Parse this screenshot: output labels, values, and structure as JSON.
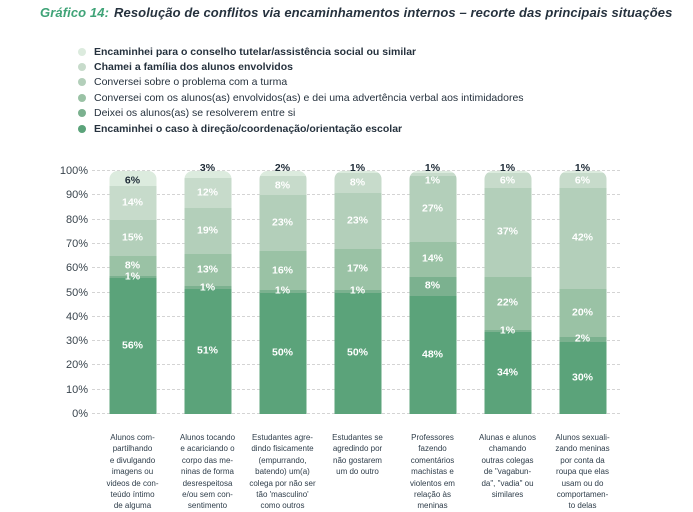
{
  "header": {
    "prefix": "Gráfico 14:",
    "title": "Resolução de conflitos via encaminhamentos internos – recorte das principais situações"
  },
  "legend": {
    "items": [
      {
        "label": "Encaminhei para o conselho tutelar/assistência social ou similar",
        "color": "#dcebde",
        "bold": true
      },
      {
        "label": "Chamei a família dos alunos envolvidos",
        "color": "#c7dbcb",
        "bold": true
      },
      {
        "label": "Conversei sobre o problema com a turma",
        "color": "#b3cfba",
        "bold": false
      },
      {
        "label": "Conversei com os alunos(as) envolvidos(as) e dei uma advertência verbal aos intimidadores",
        "color": "#9ac2a5",
        "bold": false
      },
      {
        "label": "Deixei os alunos(as) se resolverem entre si",
        "color": "#7bb18f",
        "bold": false
      },
      {
        "label": "Encaminhei o caso à direção/coordenação/orientação escolar",
        "color": "#5ba37a",
        "bold": true
      }
    ]
  },
  "y_axis": {
    "tick_labels": [
      "100%",
      "90%",
      "80%",
      "70%",
      "60%",
      "50%",
      "40%",
      "30%",
      "20%",
      "10%",
      "0%"
    ],
    "tick_values": [
      100,
      90,
      80,
      70,
      60,
      50,
      40,
      30,
      20,
      10,
      0
    ]
  },
  "colors": {
    "title_green": "#3fa377",
    "text_dark": "#26323e",
    "grid": "#d4d4d4",
    "bar_label_light": "#ffffff",
    "bar_label_dark": "#1f2c38"
  },
  "chart_data": {
    "type": "bar",
    "stacked": true,
    "title": "Gráfico 14: Resolução de conflitos via encaminhamentos internos – recorte das principais situações",
    "xlabel": "",
    "ylabel": "",
    "ylim": [
      0,
      100
    ],
    "value_suffix": "%",
    "grid": "horizontal-dashed",
    "legend_position": "top-left",
    "categories": [
      "Alunos compartilhando e divulgando imagens ou videos de conteúdo íntimo de alguma",
      "Alunos tocando e acariciando o corpo das meninas de forma desrespeitosa e/ou sem consentimento",
      "Estudantes agredindo fisicamente (empurrando, batendo) um(a) colega por não ser tão 'masculino' como outros",
      "Estudantes se agredindo por não gostarem um do outro",
      "Professores fazendo comentários machistas e violentos em relação às meninas",
      "Alunas e alunos chamando outras colegas de \"vagabunda\", \"vadia\" ou similares",
      "Alunos sexualizando meninas por conta da roupa que elas usam ou do comportamento delas"
    ],
    "category_lines": [
      [
        "Alunos com-",
        "partilhando",
        "e divulgando",
        "imagens ou",
        "videos de con-",
        "teúdo íntimo",
        "de alguma"
      ],
      [
        "Alunos tocando",
        "e acariciando o",
        "corpo das me-",
        "ninas de forma",
        "desrespeitosa",
        "e/ou sem con-",
        "sentimento"
      ],
      [
        "Estudantes agre-",
        "dindo fisicamente",
        "(empurrando,",
        "batendo) um(a)",
        "colega por não ser",
        "tão 'masculino'",
        "como outros"
      ],
      [
        "Estudantes se",
        "agredindo por",
        "não gostarem",
        "um do outro"
      ],
      [
        "Professores",
        "fazendo",
        "comentários",
        "machistas e",
        "violentos em",
        "relação às",
        "meninas"
      ],
      [
        "Alunas e alunos",
        "chamando",
        "outras colegas",
        "de \"vagabun-",
        "da\", \"vadia\" ou",
        "similares"
      ],
      [
        "Alunos sexuali-",
        "zando meninas",
        "por conta da",
        "roupa que elas",
        "usam ou do",
        "comportamen-",
        "to delas"
      ]
    ],
    "series": [
      {
        "name": "Encaminhei para o conselho tutelar/assistência social ou similar",
        "color": "#dcebde",
        "values": [
          6,
          3,
          2,
          1,
          1,
          1,
          1
        ]
      },
      {
        "name": "Chamei a família dos alunos envolvidos",
        "color": "#c7dbcb",
        "values": [
          14,
          12,
          8,
          8,
          1,
          6,
          6
        ]
      },
      {
        "name": "Conversei sobre o problema com a turma",
        "color": "#b3cfba",
        "values": [
          15,
          19,
          23,
          23,
          27,
          37,
          42
        ]
      },
      {
        "name": "Conversei com os alunos(as) envolvidos(as) e dei uma advertência verbal aos intimidadores",
        "color": "#9ac2a5",
        "values": [
          8,
          13,
          16,
          17,
          14,
          22,
          20
        ]
      },
      {
        "name": "Deixei os alunos(as) se resolverem entre si",
        "color": "#7bb18f",
        "values": [
          1,
          1,
          1,
          1,
          8,
          1,
          2
        ]
      },
      {
        "name": "Encaminhei o caso à direção/coordenação/orientação escolar",
        "color": "#5ba37a",
        "values": [
          56,
          51,
          50,
          50,
          48,
          34,
          30
        ]
      }
    ]
  }
}
